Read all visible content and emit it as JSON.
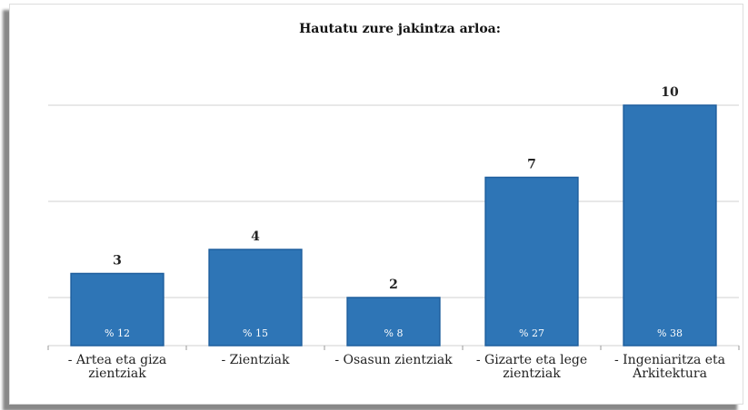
{
  "chart_data": {
    "type": "bar",
    "title": "Hautatu zure jakintza arloa:",
    "categories": [
      "- Artea eta giza zientziak",
      "- Zientziak",
      "- Osasun zientziak",
      "- Gizarte eta lege zientziak",
      "- Ingeniaritza eta Arkitektura"
    ],
    "values": [
      3,
      4,
      2,
      7,
      10
    ],
    "shares": {
      "values": [
        12,
        15,
        8,
        27,
        38
      ],
      "value_labels": [
        "% 12",
        "% 15",
        "% 8",
        "% 27",
        "% 38"
      ]
    },
    "color": "#2e75b6",
    "ylim": [
      0,
      12
    ],
    "yticks": [
      2,
      6,
      10
    ],
    "grid": true
  }
}
